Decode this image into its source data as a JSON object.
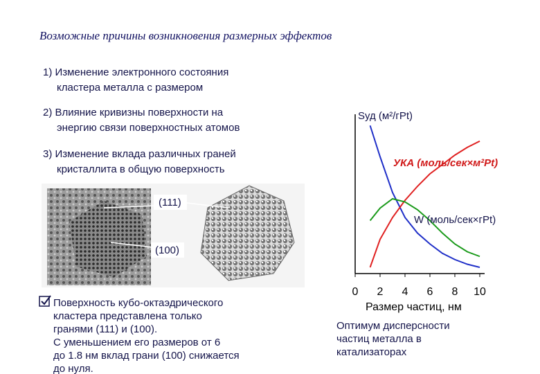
{
  "title": "Возможные причины возникновения размерных эффектов",
  "items": [
    [
      "1) Изменение электронного состояния",
      "кластера металла с размером"
    ],
    [
      "2) Влияние кривизны поверхности на",
      "энергию связи поверхностных атомов"
    ],
    [
      "3) Изменение вклада различных граней",
      "кристаллита в общую поверхность"
    ]
  ],
  "image_labels": [
    "(111)",
    "(100)"
  ],
  "note": [
    "Поверхность кубо-октаэдрического",
    "кластера представлена только",
    "гранями (111) и (100).",
    "С уменьшением  его размеров  от 6",
    "до 1.8 нм вклад грани (100) снижается",
    "до нуля."
  ],
  "caption": [
    "Оптимум дисперсности",
    "частиц металла в",
    "катализаторах"
  ],
  "chart_data": {
    "type": "line",
    "x_label": "Размер частиц,  нм",
    "x": [
      1.2,
      2,
      3,
      4,
      5,
      6,
      7,
      8,
      9,
      10
    ],
    "series": [
      {
        "name": "Sуд (м²/гPt)",
        "color": "#1f2fc8",
        "values": [
          9.5,
          7.5,
          5.2,
          3.6,
          2.6,
          1.9,
          1.3,
          0.9,
          0.6,
          0.4
        ]
      },
      {
        "name": "УКА (моль/сек×м²Pt)",
        "color": "#e02020",
        "values": [
          0.4,
          2.2,
          3.6,
          4.7,
          5.6,
          6.4,
          7.0,
          7.6,
          8.1,
          8.5
        ]
      },
      {
        "name": "W (моль/сек×гPt)",
        "color": "#1a9a1a",
        "values": [
          3.4,
          4.2,
          4.8,
          4.6,
          4.1,
          3.4,
          2.6,
          1.9,
          1.4,
          1.1
        ]
      }
    ],
    "xlim": [
      0,
      10
    ],
    "xticks": [
      0,
      2,
      4,
      6,
      8,
      10
    ],
    "ylim": [
      0,
      10
    ]
  }
}
